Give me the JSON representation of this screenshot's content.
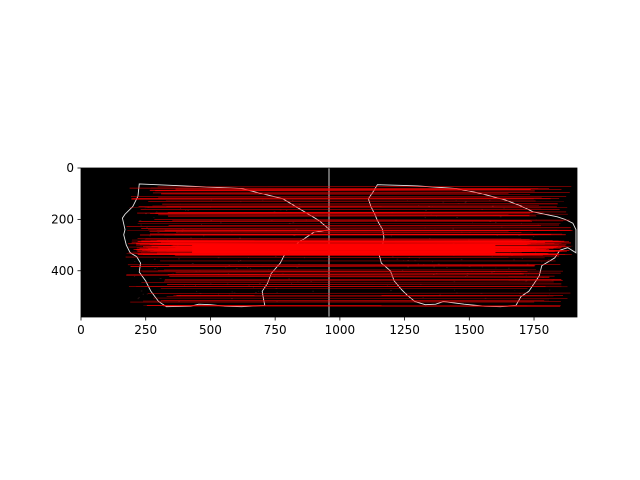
{
  "figure": {
    "background": "#ffffff",
    "image_background": "#000000",
    "outline_color": "#e8e8e8",
    "match_color": "#ff0000"
  },
  "axes": {
    "xlim": [
      0,
      1916
    ],
    "ylim": [
      580,
      0
    ],
    "x_ticks": [
      {
        "value": 0,
        "label": "0"
      },
      {
        "value": 250,
        "label": "250"
      },
      {
        "value": 500,
        "label": "500"
      },
      {
        "value": 750,
        "label": "750"
      },
      {
        "value": 1000,
        "label": "1000"
      },
      {
        "value": 1250,
        "label": "1250"
      },
      {
        "value": 1500,
        "label": "1500"
      },
      {
        "value": 1750,
        "label": "1750"
      }
    ],
    "y_ticks": [
      {
        "value": 0,
        "label": "0"
      },
      {
        "value": 200,
        "label": "200"
      },
      {
        "value": 400,
        "label": "400"
      }
    ]
  },
  "panels": {
    "divider_x": 958,
    "left_fragment": [
      [
        225,
        62
      ],
      [
        400,
        70
      ],
      [
        620,
        80
      ],
      [
        780,
        120
      ],
      [
        920,
        205
      ],
      [
        960,
        240
      ],
      [
        900,
        250
      ],
      [
        840,
        290
      ],
      [
        790,
        330
      ],
      [
        770,
        370
      ],
      [
        735,
        410
      ],
      [
        720,
        450
      ],
      [
        700,
        480
      ],
      [
        705,
        510
      ],
      [
        710,
        535
      ],
      [
        620,
        540
      ],
      [
        555,
        538
      ],
      [
        500,
        532
      ],
      [
        455,
        530
      ],
      [
        425,
        538
      ],
      [
        330,
        540
      ],
      [
        300,
        520
      ],
      [
        270,
        480
      ],
      [
        250,
        440
      ],
      [
        225,
        405
      ],
      [
        230,
        370
      ],
      [
        215,
        345
      ],
      [
        190,
        330
      ],
      [
        175,
        300
      ],
      [
        165,
        260
      ],
      [
        170,
        240
      ],
      [
        160,
        195
      ],
      [
        170,
        180
      ],
      [
        200,
        150
      ],
      [
        220,
        110
      ]
    ],
    "right_fragment": [
      [
        1145,
        65
      ],
      [
        1245,
        68
      ],
      [
        1300,
        70
      ],
      [
        1380,
        75
      ],
      [
        1450,
        80
      ],
      [
        1540,
        98
      ],
      [
        1640,
        125
      ],
      [
        1700,
        148
      ],
      [
        1745,
        170
      ],
      [
        1790,
        180
      ],
      [
        1840,
        190
      ],
      [
        1870,
        200
      ],
      [
        1900,
        215
      ],
      [
        1912,
        240
      ],
      [
        1912,
        330
      ],
      [
        1880,
        310
      ],
      [
        1850,
        320
      ],
      [
        1830,
        350
      ],
      [
        1780,
        380
      ],
      [
        1770,
        420
      ],
      [
        1750,
        450
      ],
      [
        1730,
        480
      ],
      [
        1700,
        500
      ],
      [
        1680,
        535
      ],
      [
        1620,
        540
      ],
      [
        1560,
        538
      ],
      [
        1480,
        530
      ],
      [
        1400,
        520
      ],
      [
        1370,
        530
      ],
      [
        1330,
        532
      ],
      [
        1290,
        520
      ],
      [
        1260,
        495
      ],
      [
        1240,
        475
      ],
      [
        1210,
        440
      ],
      [
        1195,
        400
      ],
      [
        1160,
        370
      ],
      [
        1150,
        330
      ],
      [
        1165,
        300
      ],
      [
        1170,
        270
      ],
      [
        1165,
        240
      ],
      [
        1145,
        205
      ],
      [
        1135,
        180
      ],
      [
        1120,
        150
      ],
      [
        1110,
        120
      ],
      [
        1130,
        90
      ]
    ]
  },
  "matches": {
    "dense_band": [
      280,
      340
    ],
    "count": 180
  }
}
